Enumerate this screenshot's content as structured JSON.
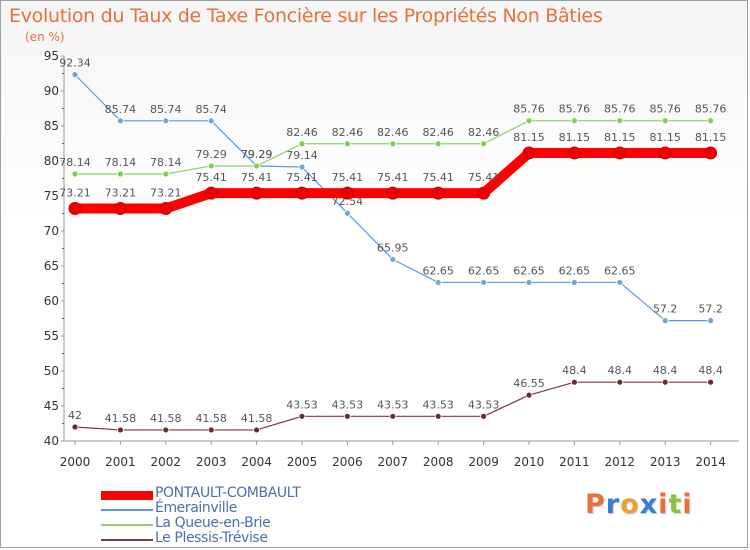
{
  "title": "Evolution du Taux de Taxe Foncière sur les Propriétés Non Bâties",
  "unit_label": "(en %)",
  "logo": {
    "text": "Proxiti",
    "letters": [
      "P",
      "r",
      "o",
      "x",
      "i",
      "t",
      "i"
    ],
    "colors": [
      "#e8703a",
      "#3a7bd5",
      "#e8a23a",
      "#3a7bd5",
      "#e8703a",
      "#8ac43f",
      "#e8703a"
    ]
  },
  "chart_data": {
    "type": "line",
    "title": "Evolution du Taux de Taxe Foncière sur les Propriétés Non Bâties",
    "ylabel": "(en %)",
    "xlabel": "",
    "ylim": [
      40,
      95
    ],
    "yticks": [
      40,
      45,
      50,
      55,
      60,
      65,
      70,
      75,
      80,
      85,
      90,
      95
    ],
    "x": [
      "2000",
      "2001",
      "2002",
      "2003",
      "2004",
      "2005",
      "2006",
      "2007",
      "2008",
      "2009",
      "2010",
      "2011",
      "2012",
      "2013",
      "2014"
    ],
    "grid": false,
    "legend_position": "bottom-left",
    "series": [
      {
        "name": "Émerainville",
        "color": "#5b9bd5",
        "marker": "#6aa8dc",
        "width": 1.2,
        "radius": 3,
        "values": [
          92.34,
          85.74,
          85.74,
          85.74,
          79.29,
          79.14,
          72.54,
          65.95,
          62.65,
          62.65,
          62.65,
          62.65,
          62.65,
          57.2,
          57.2
        ],
        "labels": [
          "92.34",
          "85.74",
          "85.74",
          "85.74",
          "79.29",
          "79.14",
          "72.54",
          "65.95",
          "62.65",
          "62.65",
          "62.65",
          "62.65",
          "62.65",
          "57.2",
          "57.2"
        ]
      },
      {
        "name": "La Queue-en-Brie",
        "color": "#8fd16a",
        "marker": "#7ccf4a",
        "width": 1.2,
        "radius": 3,
        "values": [
          78.14,
          78.14,
          78.14,
          79.29,
          79.29,
          82.46,
          82.46,
          82.46,
          82.46,
          82.46,
          85.76,
          85.76,
          85.76,
          85.76,
          85.76
        ],
        "labels": [
          "78.14",
          "78.14",
          "78.14",
          "79.29",
          "79.29",
          "82.46",
          "82.46",
          "82.46",
          "82.46",
          "82.46",
          "85.76",
          "85.76",
          "85.76",
          "85.76",
          "85.76"
        ]
      },
      {
        "name": "Le Plessis-Trévise",
        "color": "#7a3a3a",
        "marker": "#6b2c2c",
        "width": 1.2,
        "radius": 3,
        "values": [
          42,
          41.58,
          41.58,
          41.58,
          41.58,
          43.53,
          43.53,
          43.53,
          43.53,
          43.53,
          46.55,
          48.4,
          48.4,
          48.4,
          48.4
        ],
        "labels": [
          "42",
          "41.58",
          "41.58",
          "41.58",
          "41.58",
          "43.53",
          "43.53",
          "43.53",
          "43.53",
          "43.53",
          "46.55",
          "48.4",
          "48.4",
          "48.4",
          "48.4"
        ]
      },
      {
        "name": "PONTAULT-COMBAULT",
        "color": "#ff0000",
        "marker": "#ee0000",
        "width": 10,
        "radius": 6,
        "values": [
          73.21,
          73.21,
          73.21,
          75.41,
          75.41,
          75.41,
          75.41,
          75.41,
          75.41,
          75.41,
          81.15,
          81.15,
          81.15,
          81.15,
          81.15
        ],
        "labels": [
          "73.21",
          "73.21",
          "73.21",
          "75.41",
          "75.41",
          "75.41",
          "75.41",
          "75.41",
          "75.41",
          "75.41",
          "81.15",
          "81.15",
          "81.15",
          "81.15",
          "81.15"
        ]
      }
    ]
  },
  "legend": [
    {
      "name": "PONTAULT-COMBAULT",
      "color": "#ff0000",
      "thickness": 9
    },
    {
      "name": "Émerainville",
      "color": "#5b9bd5",
      "thickness": 2
    },
    {
      "name": "La Queue-en-Brie",
      "color": "#8fd16a",
      "thickness": 2
    },
    {
      "name": "Le Plessis-Trévise",
      "color": "#7a3a3a",
      "thickness": 2
    }
  ]
}
